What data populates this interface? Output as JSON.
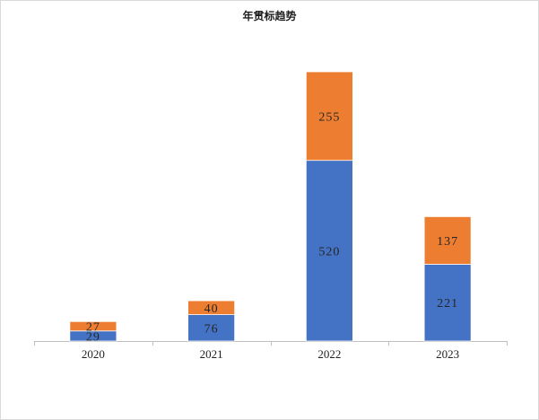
{
  "chart_data": {
    "type": "bar",
    "stacked": true,
    "title": "年贯标趋势",
    "categories": [
      "2020",
      "2021",
      "2022",
      "2023"
    ],
    "series": [
      {
        "values": [
          29,
          76,
          520,
          221
        ],
        "color": "#4472c4"
      },
      {
        "values": [
          27,
          40,
          255,
          137
        ],
        "color": "#ed7d31"
      }
    ],
    "xlabel": "",
    "ylabel": "",
    "ylim": [
      0,
      775
    ],
    "grid": false,
    "legend": "none"
  }
}
